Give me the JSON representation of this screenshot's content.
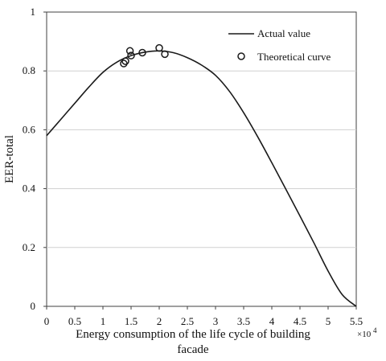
{
  "chart_data": {
    "type": "line",
    "xlabel_line1": "Energy consumption of the life cycle of building",
    "xlabel_line2": "facade",
    "ylabel": "EER-total",
    "x_multiplier": "×10",
    "x_multiplier_exp": "4",
    "xlim": [
      0,
      5.5
    ],
    "ylim": [
      0,
      1
    ],
    "x_ticks": [
      "0",
      "0.5",
      "1",
      "1.5",
      "2",
      "2.5",
      "3",
      "3.5",
      "4",
      "4.5",
      "5",
      "5.5"
    ],
    "y_ticks": [
      "0",
      "0.2",
      "0.4",
      "0.6",
      "0.8",
      "1"
    ],
    "grid": "horizontal",
    "legend_position": "top-right",
    "series": [
      {
        "name": "Actual value",
        "style": "line",
        "color": "#1a1a1a",
        "x": [
          0,
          0.25,
          0.5,
          0.75,
          1.0,
          1.25,
          1.5,
          1.75,
          2.0,
          2.25,
          2.5,
          2.75,
          3.0,
          3.25,
          3.5,
          3.75,
          4.0,
          4.25,
          4.5,
          4.75,
          5.0,
          5.25,
          5.5
        ],
        "y": [
          0.58,
          0.635,
          0.69,
          0.745,
          0.795,
          0.83,
          0.852,
          0.864,
          0.868,
          0.862,
          0.845,
          0.82,
          0.785,
          0.73,
          0.658,
          0.576,
          0.488,
          0.398,
          0.307,
          0.215,
          0.12,
          0.04,
          0.0
        ]
      },
      {
        "name": "Theoretical curve",
        "style": "marker",
        "color": "#1a1a1a",
        "x": [
          1.37,
          1.4,
          1.48,
          1.5,
          1.7,
          2.0,
          2.1
        ],
        "y": [
          0.825,
          0.833,
          0.868,
          0.852,
          0.862,
          0.878,
          0.857
        ]
      }
    ]
  }
}
